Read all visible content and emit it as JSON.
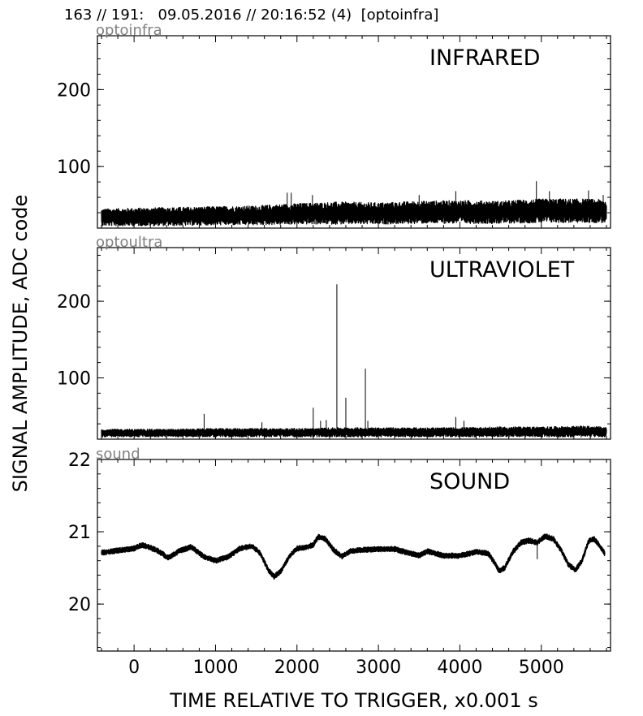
{
  "header": {
    "title": "163 // 191:   09.05.2016 // 20:16:52 (4)  [optoinfra]"
  },
  "chart_data": {
    "type": "line",
    "xlabel": "TIME RELATIVE TO TRIGGER,   x0.001 s",
    "ylabel": "SIGNAL AMPLITUDE,  ADC code",
    "xlim": [
      -450,
      5850
    ],
    "xticks": [
      "0",
      "1000",
      "2000",
      "3000",
      "4000",
      "5000"
    ],
    "xtick_values": [
      0,
      1000,
      2000,
      3000,
      4000,
      5000
    ],
    "panels": [
      {
        "tag": "optoinfra",
        "label": "INFRARED",
        "ylim": [
          20,
          270
        ],
        "yticks": [
          "100",
          "200"
        ],
        "ytick_values": [
          100,
          200
        ],
        "band": {
          "x": [
            -400,
            0,
            500,
            1000,
            1500,
            2000,
            2500,
            3000,
            3500,
            4000,
            4500,
            5000,
            5500,
            5800
          ],
          "low": [
            23,
            23,
            23,
            24,
            24,
            25,
            25,
            25,
            26,
            26,
            26,
            27,
            27,
            27
          ],
          "high": [
            45,
            46,
            47,
            48,
            49,
            52,
            54,
            53,
            55,
            56,
            55,
            58,
            58,
            57
          ]
        },
        "spikes": [
          {
            "x": 1880,
            "y": 66
          },
          {
            "x": 1930,
            "y": 66
          },
          {
            "x": 2190,
            "y": 63
          },
          {
            "x": 3500,
            "y": 63
          },
          {
            "x": 3950,
            "y": 68
          },
          {
            "x": 4940,
            "y": 81
          },
          {
            "x": 5100,
            "y": 68
          },
          {
            "x": 5580,
            "y": 69
          },
          {
            "x": 5760,
            "y": 63
          }
        ]
      },
      {
        "tag": "optoultra",
        "label": "ULTRAVIOLET",
        "ylim": [
          20,
          270
        ],
        "yticks": [
          "100",
          "200"
        ],
        "ytick_values": [
          100,
          200
        ],
        "band": {
          "x": [
            -400,
            0,
            500,
            1000,
            1500,
            2000,
            2500,
            3000,
            3500,
            4000,
            4500,
            5000,
            5500,
            5800
          ],
          "low": [
            23,
            23,
            23,
            23,
            23,
            23,
            23,
            23,
            23,
            23,
            23,
            23,
            23,
            23
          ],
          "high": [
            33,
            33,
            33,
            34,
            34,
            34,
            35,
            35,
            35,
            35,
            36,
            36,
            37,
            36
          ]
        },
        "spikes": [
          {
            "x": 860,
            "y": 53
          },
          {
            "x": 1570,
            "y": 42
          },
          {
            "x": 2200,
            "y": 61
          },
          {
            "x": 2290,
            "y": 44
          },
          {
            "x": 2360,
            "y": 45
          },
          {
            "x": 2490,
            "y": 222
          },
          {
            "x": 2600,
            "y": 74
          },
          {
            "x": 2840,
            "y": 112
          },
          {
            "x": 2870,
            "y": 44
          },
          {
            "x": 3950,
            "y": 49
          },
          {
            "x": 4050,
            "y": 44
          }
        ]
      },
      {
        "tag": "sound",
        "label": "SOUND",
        "ylim": [
          19.35,
          22.0
        ],
        "yticks": [
          "20",
          "21",
          "22"
        ],
        "ytick_values": [
          20,
          21,
          22
        ],
        "trace": {
          "x": [
            -400,
            -200,
            0,
            100,
            200,
            300,
            420,
            550,
            700,
            850,
            1000,
            1150,
            1300,
            1450,
            1550,
            1650,
            1720,
            1800,
            1900,
            2000,
            2100,
            2200,
            2260,
            2350,
            2450,
            2550,
            2650,
            2800,
            3000,
            3200,
            3400,
            3500,
            3600,
            3800,
            4000,
            4200,
            4350,
            4420,
            4480,
            4550,
            4650,
            4750,
            4850,
            4950,
            5050,
            5150,
            5250,
            5330,
            5420,
            5500,
            5580,
            5650,
            5720,
            5780
          ],
          "y": [
            20.71,
            20.74,
            20.77,
            20.82,
            20.78,
            20.73,
            20.64,
            20.73,
            20.79,
            20.66,
            20.6,
            20.65,
            20.77,
            20.8,
            20.7,
            20.47,
            20.38,
            20.45,
            20.65,
            20.77,
            20.78,
            20.82,
            20.93,
            20.9,
            20.75,
            20.66,
            20.73,
            20.75,
            20.76,
            20.76,
            20.7,
            20.67,
            20.73,
            20.67,
            20.67,
            20.72,
            20.7,
            20.58,
            20.46,
            20.5,
            20.72,
            20.85,
            20.88,
            20.85,
            20.94,
            20.9,
            20.73,
            20.55,
            20.47,
            20.6,
            20.87,
            20.9,
            20.8,
            20.7
          ]
        },
        "spikes": [
          {
            "x": 4950,
            "y": 20.62
          }
        ]
      }
    ]
  }
}
